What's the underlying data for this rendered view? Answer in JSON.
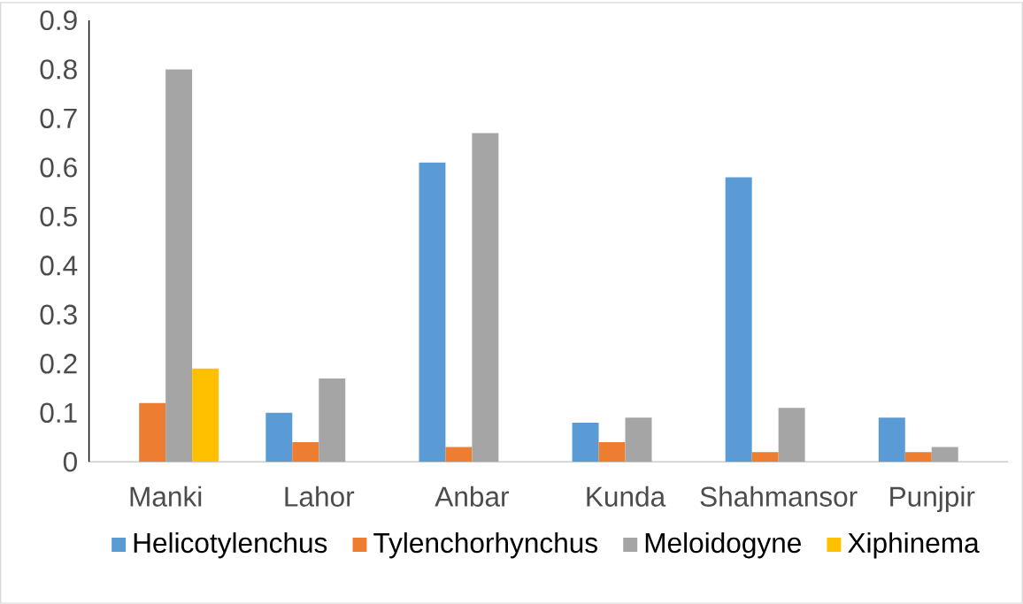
{
  "chart_data": {
    "type": "bar",
    "categories": [
      "Manki",
      "Lahor",
      "Anbar",
      "Kunda",
      "Shahmansor",
      "Punjpir"
    ],
    "series": [
      {
        "name": "Helicotylenchus",
        "color": "#5b9bd5",
        "values": [
          null,
          0.1,
          0.61,
          0.08,
          0.58,
          0.09
        ]
      },
      {
        "name": "Tylenchorhynchus",
        "color": "#ed7d31",
        "values": [
          0.12,
          0.04,
          0.03,
          0.04,
          0.02,
          0.02
        ]
      },
      {
        "name": "Meloidogyne",
        "color": "#a5a5a5",
        "values": [
          0.8,
          0.17,
          0.67,
          0.09,
          0.11,
          0.03
        ]
      },
      {
        "name": "Xiphinema",
        "color": "#ffc000",
        "values": [
          0.19,
          null,
          null,
          null,
          null,
          null
        ]
      }
    ],
    "ylim": [
      0,
      0.9
    ],
    "yticks": [
      0,
      0.1,
      0.2,
      0.3,
      0.4,
      0.5,
      0.6,
      0.7,
      0.8,
      0.9
    ],
    "grid": false,
    "legend": "bottom"
  }
}
